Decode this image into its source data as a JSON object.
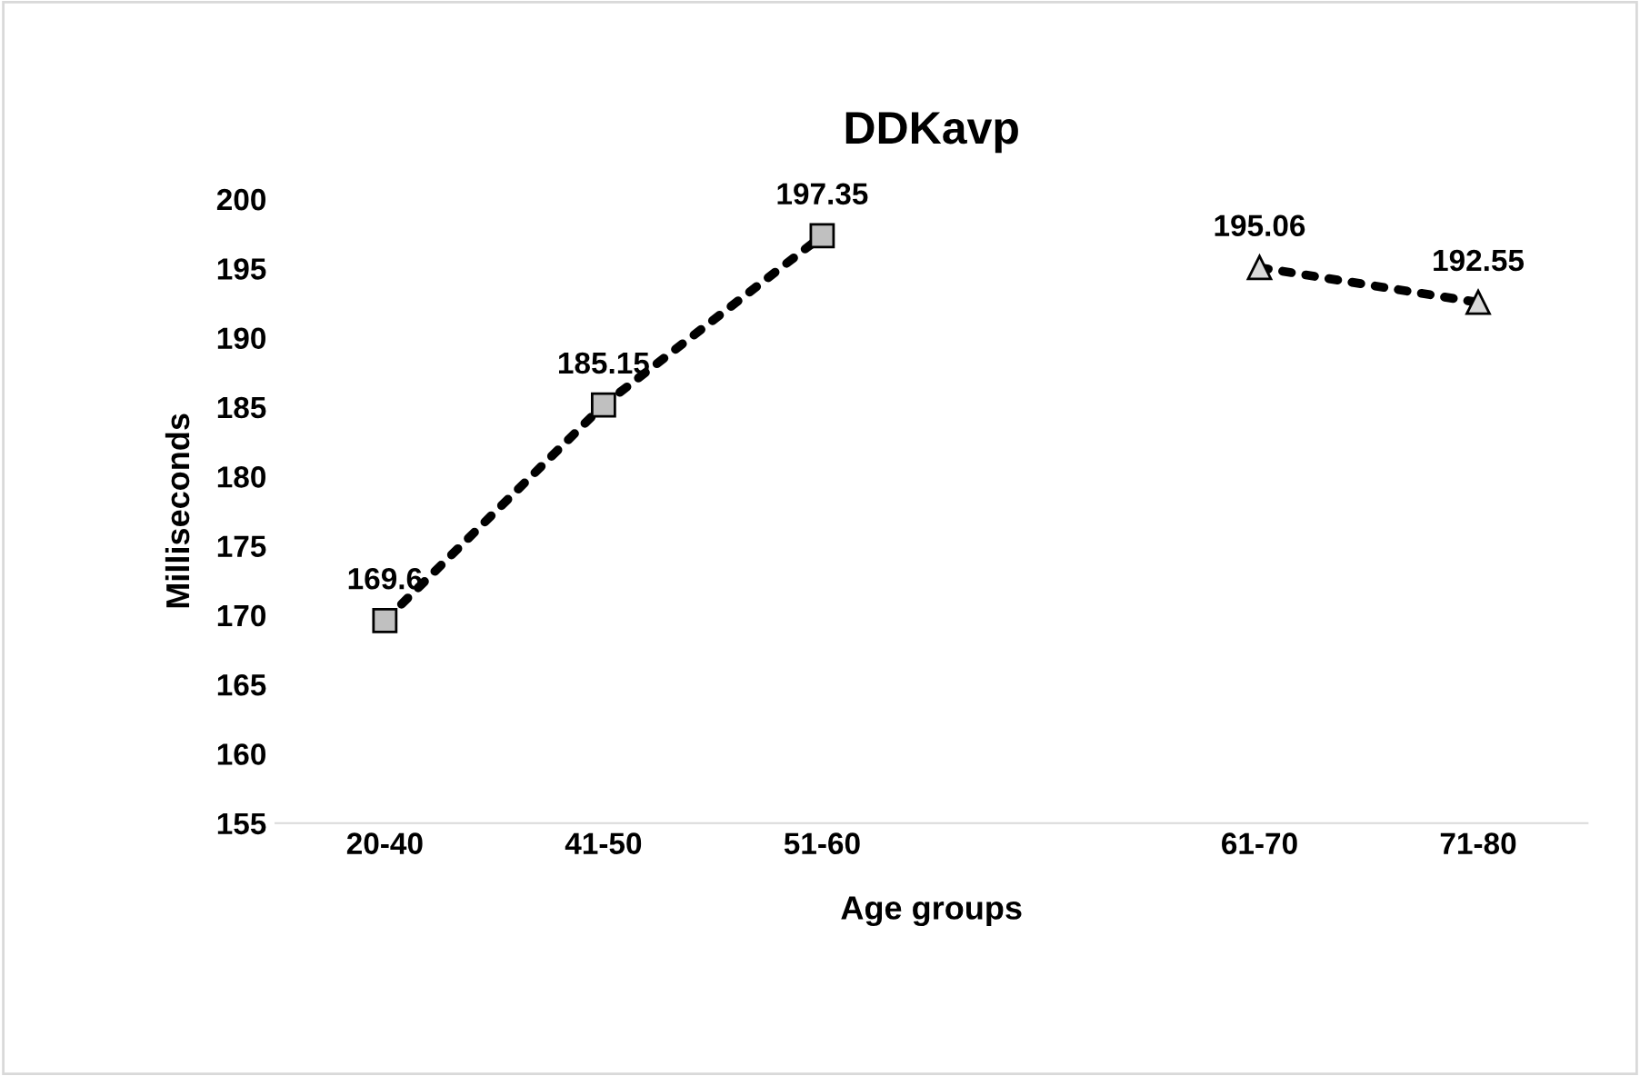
{
  "chart_data": {
    "type": "line",
    "title": "DDKavp",
    "xlabel": "Age groups",
    "ylabel": "Milliseconds",
    "categories": [
      "20-40",
      "41-50",
      "51-60",
      null,
      "61-70",
      "71-80"
    ],
    "series": [
      {
        "color": "#c0c0c0",
        "marker": "square",
        "line_style": "dotted",
        "values": [
          169.6,
          185.15,
          197.35,
          null,
          null,
          null
        ]
      },
      {
        "color": "#d9d9d9",
        "marker": "triangle",
        "line_style": "dotted",
        "values": [
          null,
          null,
          null,
          null,
          195.06,
          192.55
        ]
      }
    ],
    "ylim": [
      155,
      200
    ],
    "yticks": [
      155,
      160,
      165,
      170,
      175,
      180,
      185,
      190,
      195,
      200
    ],
    "grid": false,
    "legend": false,
    "data_labels": true
  }
}
